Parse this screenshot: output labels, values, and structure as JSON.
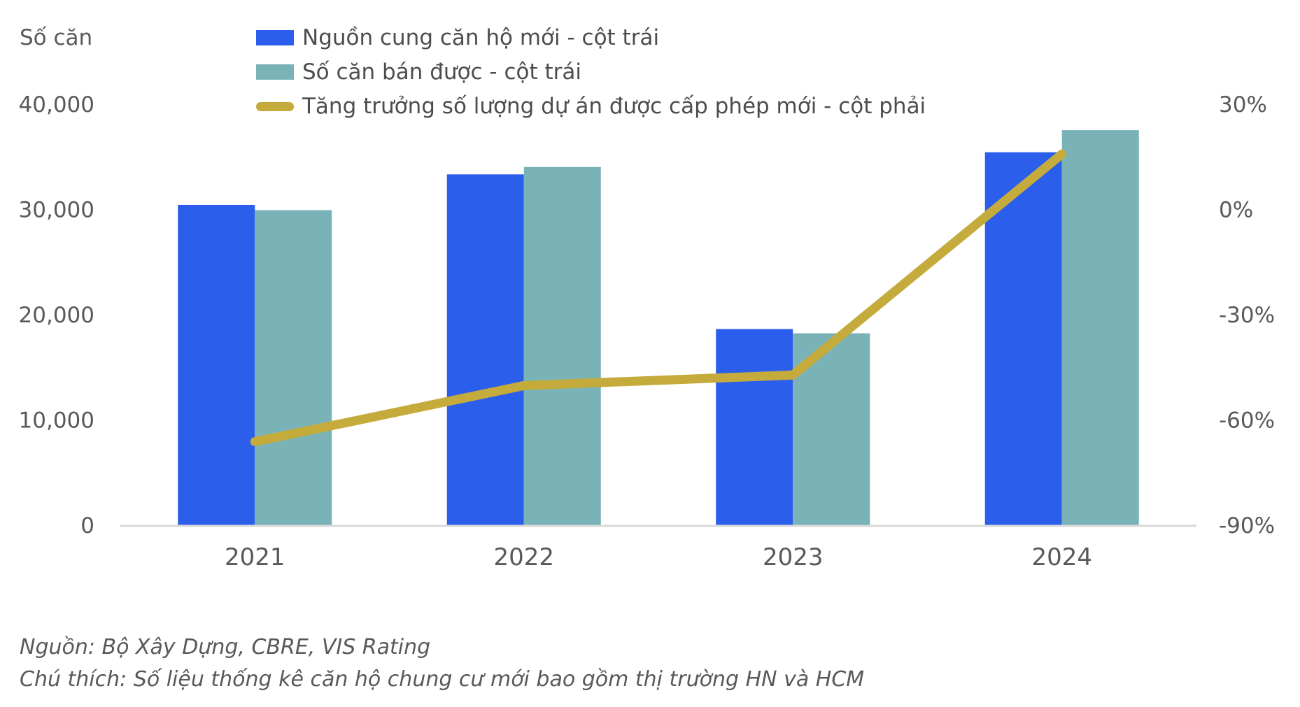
{
  "chart_data": {
    "type": "bar",
    "title": "",
    "categories": [
      "2021",
      "2022",
      "2023",
      "2024"
    ],
    "series": [
      {
        "name": "Nguồn cung căn hộ mới - cột trái",
        "type": "bar",
        "axis": "left",
        "color": "#2b5feb",
        "values": [
          30500,
          33400,
          18700,
          35500
        ]
      },
      {
        "name": "Số căn bán được - cột trái",
        "type": "bar",
        "axis": "left",
        "color": "#79b3b7",
        "values": [
          30000,
          34100,
          18300,
          37600
        ]
      },
      {
        "name": "Tăng trưởng số lượng dự án được cấp phép mới - cột phải",
        "type": "line",
        "axis": "right",
        "color": "#c5ab3c",
        "unit": "%",
        "values": [
          -66,
          -50,
          -47,
          16
        ]
      }
    ],
    "left_axis": {
      "title": "Số căn",
      "tick_labels": [
        "0",
        "10,000",
        "20,000",
        "30,000",
        "40,000"
      ],
      "range": [
        0,
        40000
      ]
    },
    "right_axis": {
      "tick_labels": [
        "-90%",
        "-60%",
        "-30%",
        "0%",
        "30%"
      ],
      "range": [
        -90,
        30
      ]
    },
    "grid": false,
    "legend_position": "top"
  },
  "notes": {
    "source": "Nguồn: Bộ Xây Dựng, CBRE, VIS Rating",
    "caption": "Chú thích: Số liệu thống kê căn hộ chung cư mới bao gồm thị trường HN và HCM"
  },
  "colors": {
    "bar_new_supply": "#2b5feb",
    "bar_sold": "#79b3b7",
    "line_growth": "#c5ab3c",
    "axis_line": "#d9d9d9",
    "text": "#595959"
  }
}
